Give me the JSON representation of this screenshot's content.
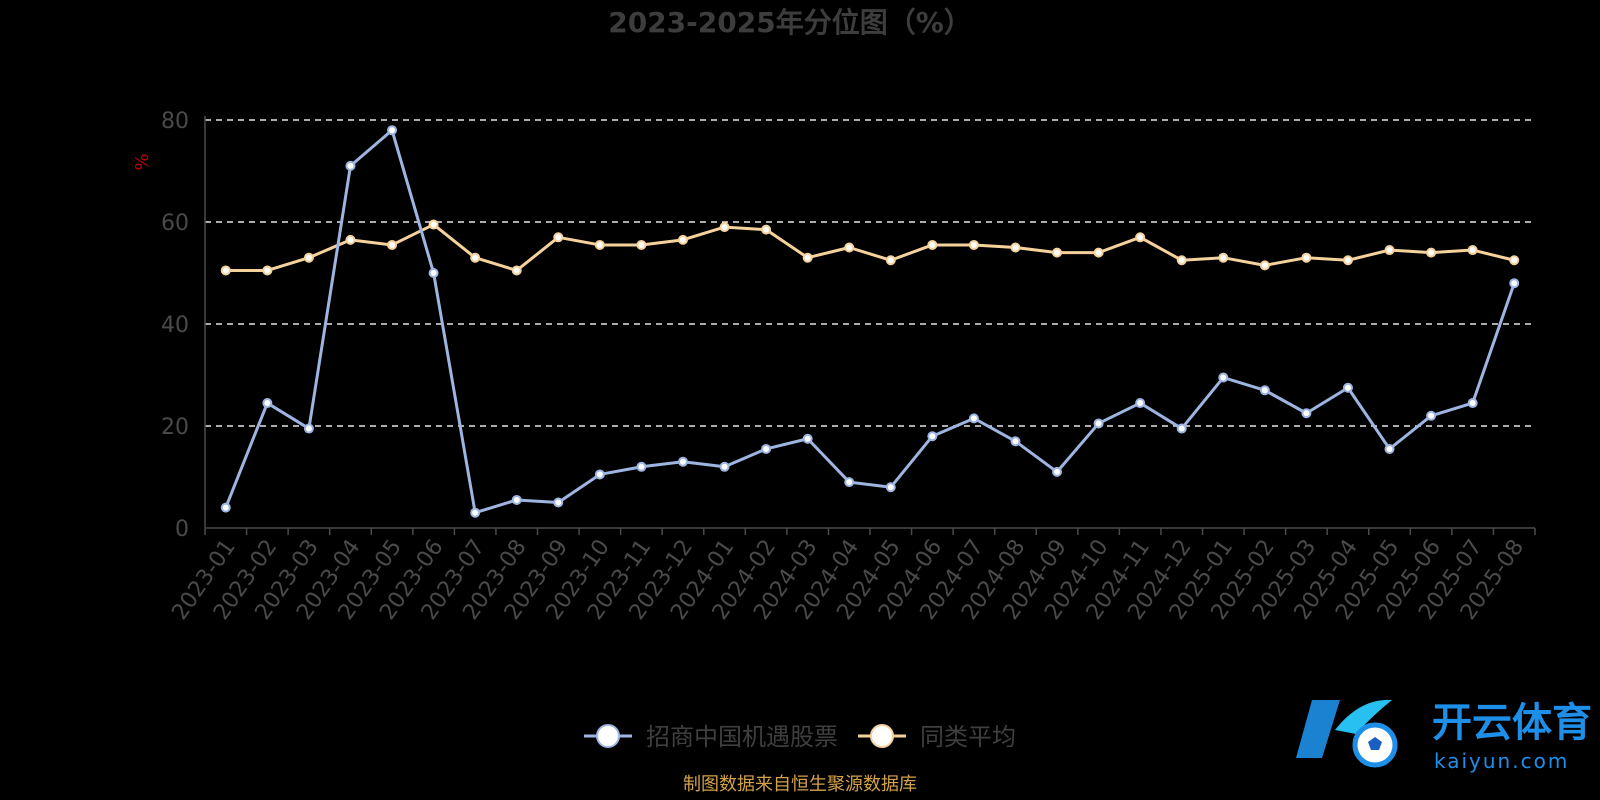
{
  "chart_data": {
    "type": "line",
    "title": "2023-2025年分位图（%）",
    "ylabel": "%",
    "ylim": [
      0,
      80
    ],
    "yticks": [
      0,
      20,
      40,
      60,
      80
    ],
    "grid": "horizontal dashed",
    "legend_position": "bottom-center",
    "categories": [
      "2023-01",
      "2023-02",
      "2023-03",
      "2023-04",
      "2023-05",
      "2023-06",
      "2023-07",
      "2023-08",
      "2023-09",
      "2023-10",
      "2023-11",
      "2023-12",
      "2024-01",
      "2024-02",
      "2024-03",
      "2024-04",
      "2024-05",
      "2024-06",
      "2024-07",
      "2024-08",
      "2024-09",
      "2024-10",
      "2024-11",
      "2024-12",
      "2025-01",
      "2025-02",
      "2025-03",
      "2025-04",
      "2025-05",
      "2025-06",
      "2025-07",
      "2025-08"
    ],
    "series": [
      {
        "name": "招商中国机遇股票",
        "color": "#9db5e0",
        "values": [
          4.0,
          24.5,
          19.5,
          71.0,
          78.0,
          50.0,
          3.0,
          5.5,
          5.0,
          10.5,
          12.0,
          13.0,
          12.0,
          15.5,
          17.5,
          9.0,
          8.0,
          18.0,
          21.5,
          17.0,
          11.0,
          20.5,
          24.5,
          19.5,
          29.5,
          27.0,
          22.5,
          27.5,
          15.5,
          22.0,
          24.5,
          48.0
        ]
      },
      {
        "name": "同类平均",
        "color": "#f5d29b",
        "values": [
          50.5,
          50.5,
          53.0,
          56.5,
          55.5,
          59.5,
          53.0,
          50.5,
          57.0,
          55.5,
          55.5,
          56.5,
          59.0,
          58.5,
          53.0,
          55.0,
          52.5,
          55.5,
          55.5,
          55.0,
          54.0,
          54.0,
          57.0,
          52.5,
          53.0,
          51.5,
          53.0,
          52.5,
          54.5,
          54.0,
          54.5,
          52.5
        ]
      }
    ]
  },
  "source_note": "制图数据来自恒生聚源数据库",
  "watermark": {
    "text_cn": "开云体育",
    "text_en": "kaiyun.com",
    "brand_color": "#1e8fe8"
  }
}
